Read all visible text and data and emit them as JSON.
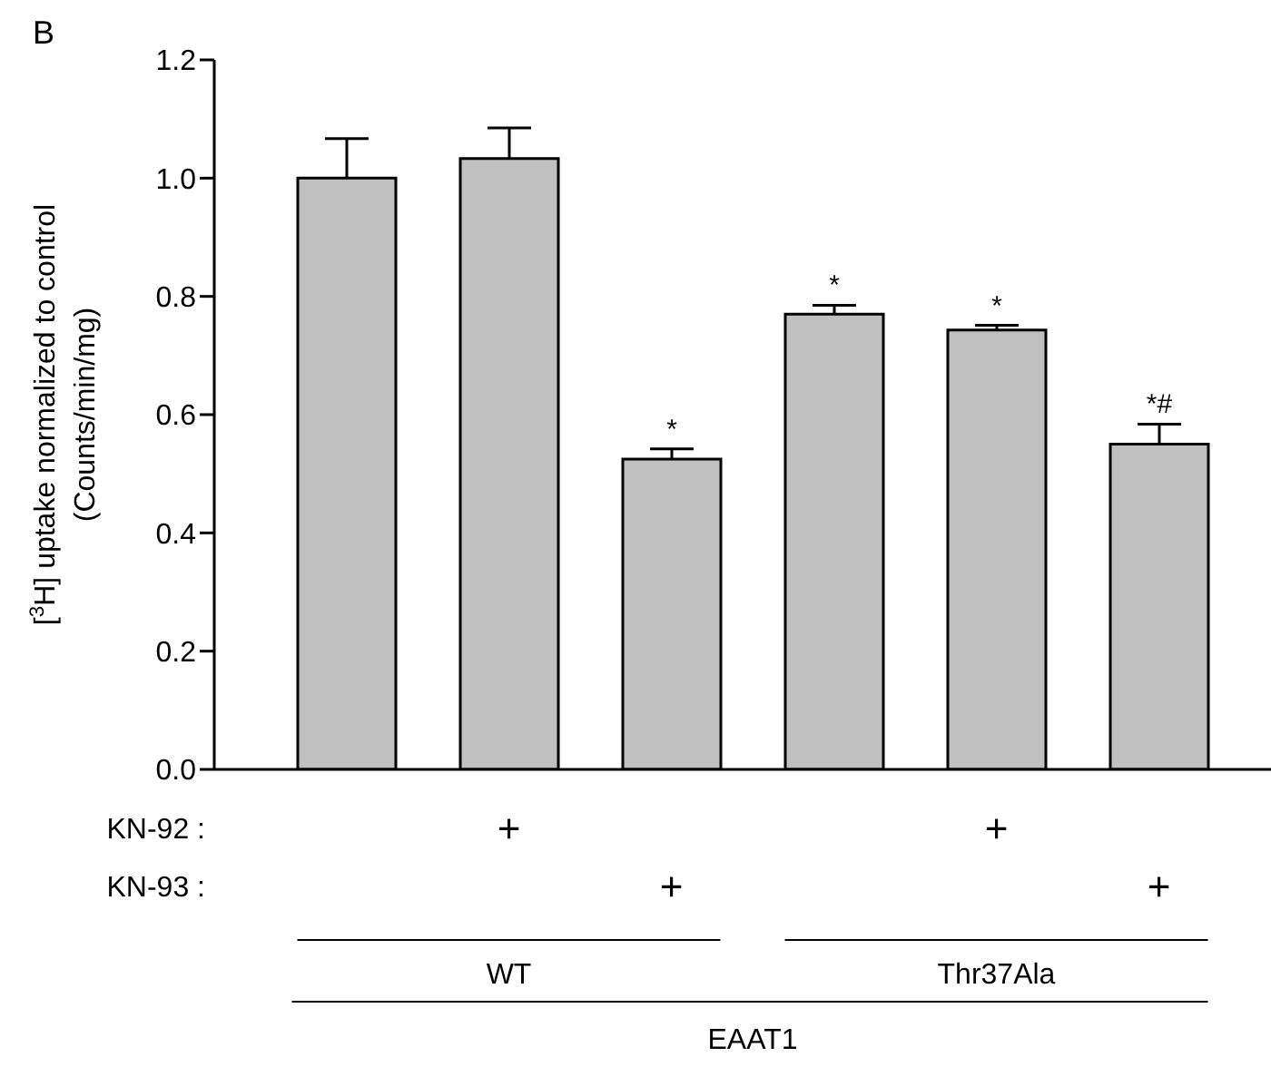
{
  "chart_data": {
    "type": "bar",
    "title": "B",
    "ylabel": "[$^{3}$H] uptake normalized to control\n(Counts/min/mg)",
    "categories": [
      null,
      null,
      null,
      null,
      null,
      null
    ],
    "values": [
      1.0,
      1.033,
      0.525,
      0.77,
      0.743,
      0.55
    ],
    "errors": [
      [
        1.0,
        1.067
      ],
      [
        1.033,
        1.085
      ],
      [
        0.525,
        0.542
      ],
      [
        0.77,
        0.785
      ],
      [
        0.743,
        0.751
      ],
      [
        0.55,
        0.584
      ]
    ],
    "value_labels": [
      null,
      null,
      "*",
      "*",
      "*",
      "*#"
    ],
    "color": "#c0c0c0",
    "ylim": [
      0,
      1.2
    ],
    "yticks": [
      {
        "value": 0,
        "label": "0.0"
      },
      0.2,
      0.4,
      0.6,
      0.8,
      {
        "value": 1,
        "label": "1.0"
      },
      1.2
    ],
    "annotations": [
      "KN-92 :",
      "KN-93 :",
      "+",
      "+",
      "+",
      "+",
      "WT",
      "Thr37Ala",
      "EAAT1"
    ],
    "grid": false,
    "legend": false
  }
}
